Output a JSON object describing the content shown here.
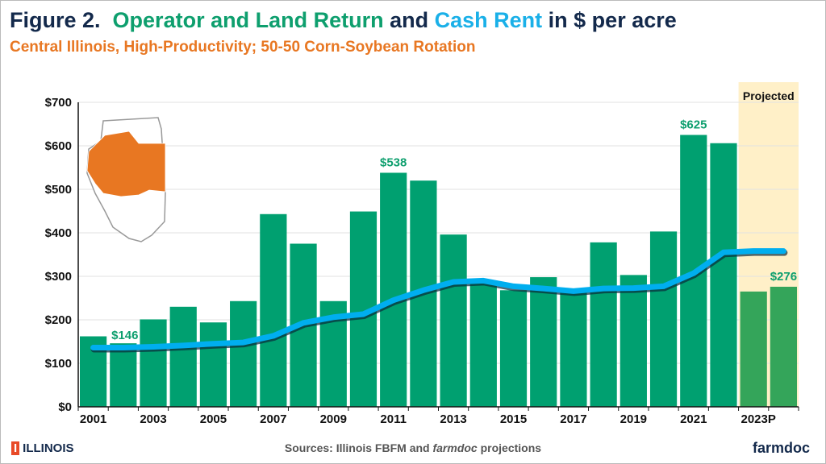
{
  "header": {
    "fig": "Figure 2.",
    "t1": "Operator and Land Return",
    "t2": "and",
    "t3": "Cash Rent",
    "t4": "in $ per acre",
    "subtitle": "Central Illinois, High-Productivity; 50-50 Corn-Soybean Rotation"
  },
  "footer": {
    "sources_a": "Sources: Illinois FBFM and ",
    "sources_b": "farmdoc",
    "sources_c": " projections",
    "logo_left": "ILLINOIS",
    "logo_right": "farmdoc"
  },
  "colors": {
    "bar": "#00a070",
    "bar_projected": "#34a55a",
    "line": "#00aeef",
    "projected_bg": "#fff0c8",
    "accent_label": "#0e9f6e"
  },
  "chart_data": {
    "type": "bar",
    "ylim": [
      0,
      700
    ],
    "yticks": [
      "$0",
      "$100",
      "$200",
      "$300",
      "$400",
      "$500",
      "$600",
      "$700"
    ],
    "xtick_labels": [
      "2001",
      "2003",
      "2005",
      "2007",
      "2009",
      "2011",
      "2013",
      "2015",
      "2017",
      "2019",
      "2021",
      "2023P"
    ],
    "categories": [
      "2001",
      "2002",
      "2003",
      "2004",
      "2005",
      "2006",
      "2007",
      "2008",
      "2009",
      "2010",
      "2011",
      "2012",
      "2013",
      "2014",
      "2015",
      "2016",
      "2017",
      "2018",
      "2019",
      "2020",
      "2021",
      "2022",
      "2023",
      "2024"
    ],
    "series": [
      {
        "name": "Operator and Land Return",
        "kind": "bar",
        "values": [
          162,
          146,
          201,
          230,
          194,
          243,
          443,
          375,
          243,
          449,
          538,
          520,
          396,
          290,
          268,
          298,
          268,
          378,
          303,
          403,
          625,
          606,
          265,
          276
        ]
      },
      {
        "name": "Cash Rent",
        "kind": "line",
        "values": [
          136,
          136,
          138,
          141,
          145,
          148,
          163,
          193,
          206,
          213,
          245,
          268,
          287,
          290,
          277,
          272,
          266,
          272,
          273,
          277,
          307,
          355,
          358,
          358
        ]
      }
    ],
    "projected_from": "2023",
    "projected_label": "Projected",
    "data_labels": [
      {
        "index": 1,
        "text": "$146"
      },
      {
        "index": 10,
        "text": "$538"
      },
      {
        "index": 20,
        "text": "$625"
      },
      {
        "index": 23,
        "text": "$276"
      }
    ],
    "grid": true
  }
}
